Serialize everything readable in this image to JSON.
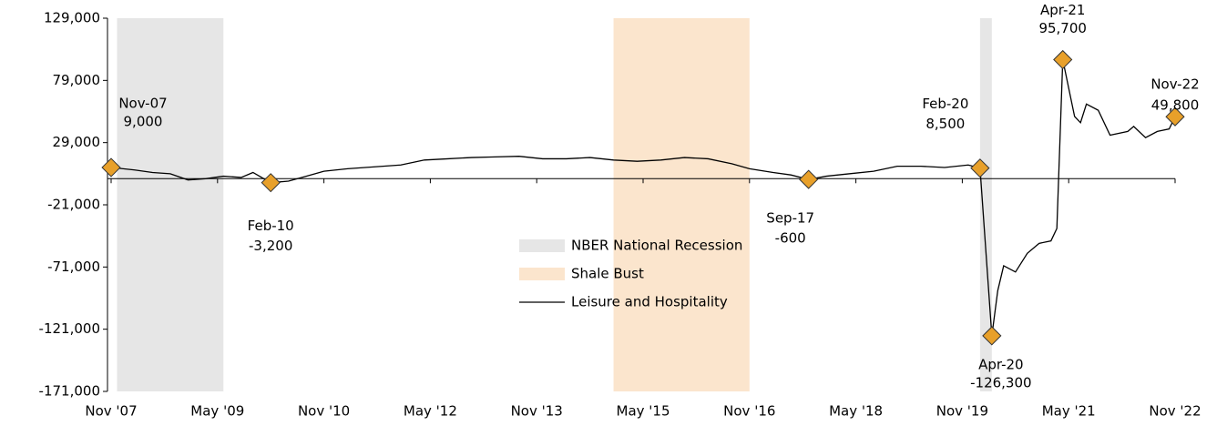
{
  "chart_data": {
    "type": "line",
    "ylim": [
      -171000,
      129000
    ],
    "yticks": [
      {
        "value": -171000,
        "label": "-171,000"
      },
      {
        "value": -121000,
        "label": "-121,000"
      },
      {
        "value": -71000,
        "label": "-71,000"
      },
      {
        "value": -21000,
        "label": "-21,000"
      },
      {
        "value": 29000,
        "label": "29,000"
      },
      {
        "value": 79000,
        "label": "79,000"
      },
      {
        "value": 129000,
        "label": "129,000"
      }
    ],
    "xlim": [
      "2007-11",
      "2022-11"
    ],
    "xticks": [
      {
        "value": "2007-11",
        "label": "Nov '07"
      },
      {
        "value": "2009-05",
        "label": "May '09"
      },
      {
        "value": "2010-11",
        "label": "Nov '10"
      },
      {
        "value": "2012-05",
        "label": "May '12"
      },
      {
        "value": "2013-11",
        "label": "Nov '13"
      },
      {
        "value": "2015-05",
        "label": "May '15"
      },
      {
        "value": "2016-11",
        "label": "Nov '16"
      },
      {
        "value": "2018-05",
        "label": "May '18"
      },
      {
        "value": "2019-11",
        "label": "Nov '19"
      },
      {
        "value": "2021-05",
        "label": "May '21"
      },
      {
        "value": "2022-11",
        "label": "Nov '22"
      }
    ],
    "shaded": [
      {
        "name": "NBER National Recession",
        "color": "#e6e6e6",
        "ranges": [
          [
            "2007-12",
            "2009-06"
          ],
          [
            "2020-02",
            "2020-04"
          ]
        ]
      },
      {
        "name": "Shale Bust",
        "color": "#fbe5cd",
        "ranges": [
          [
            "2014-12",
            "2016-11"
          ]
        ]
      }
    ],
    "x": [
      "2007-11",
      "2008-03",
      "2008-06",
      "2008-09",
      "2008-12",
      "2009-03",
      "2009-06",
      "2009-09",
      "2009-11",
      "2010-02",
      "2010-05",
      "2010-08",
      "2010-11",
      "2011-03",
      "2011-06",
      "2011-09",
      "2011-12",
      "2012-04",
      "2012-08",
      "2012-12",
      "2013-04",
      "2013-08",
      "2013-12",
      "2014-04",
      "2014-08",
      "2014-12",
      "2015-04",
      "2015-08",
      "2015-12",
      "2016-04",
      "2016-08",
      "2016-11",
      "2017-03",
      "2017-06",
      "2017-09",
      "2017-12",
      "2018-04",
      "2018-08",
      "2018-12",
      "2019-04",
      "2019-08",
      "2019-12",
      "2020-02",
      "2020-04",
      "2020-05",
      "2020-06",
      "2020-08",
      "2020-10",
      "2020-12",
      "2021-02",
      "2021-03",
      "2021-04",
      "2021-06",
      "2021-07",
      "2021-08",
      "2021-10",
      "2021-12",
      "2022-03",
      "2022-04",
      "2022-06",
      "2022-08",
      "2022-10",
      "2022-11"
    ],
    "series": [
      {
        "name": "Leisure and Hospitality",
        "color": "#000000",
        "values": [
          9000,
          7000,
          5000,
          4000,
          -1000,
          0,
          2000,
          1000,
          5000,
          -3200,
          -2000,
          2000,
          6000,
          8000,
          9000,
          10000,
          11000,
          15000,
          16000,
          17000,
          17500,
          18000,
          16000,
          16000,
          17000,
          15000,
          14000,
          15000,
          17000,
          16000,
          12000,
          8000,
          5000,
          3000,
          -600,
          2000,
          4000,
          6000,
          10000,
          10000,
          9000,
          11000,
          8500,
          -126300,
          -90000,
          -70000,
          -75000,
          -60000,
          -52000,
          -50000,
          -40000,
          95700,
          50000,
          45000,
          60000,
          55000,
          35000,
          38000,
          42000,
          33000,
          38000,
          40000,
          49800
        ]
      }
    ],
    "annotations": [
      {
        "x": "2007-11",
        "date": "Nov-07",
        "value": 9000,
        "label": "9,000"
      },
      {
        "x": "2010-02",
        "date": "Feb-10",
        "value": -3200,
        "label": "-3,200"
      },
      {
        "x": "2017-09",
        "date": "Sep-17",
        "value": -600,
        "label": "-600"
      },
      {
        "x": "2020-02",
        "date": "Feb-20",
        "value": 8500,
        "label": "8,500"
      },
      {
        "x": "2020-04",
        "date": "Apr-20",
        "value": -126300,
        "label": "-126,300"
      },
      {
        "x": "2021-04",
        "date": "Apr-21",
        "value": 95700,
        "label": "95,700"
      },
      {
        "x": "2022-11",
        "date": "Nov-22",
        "value": 49800,
        "label": "49,800"
      }
    ],
    "marker_color": "#e8a02a"
  }
}
